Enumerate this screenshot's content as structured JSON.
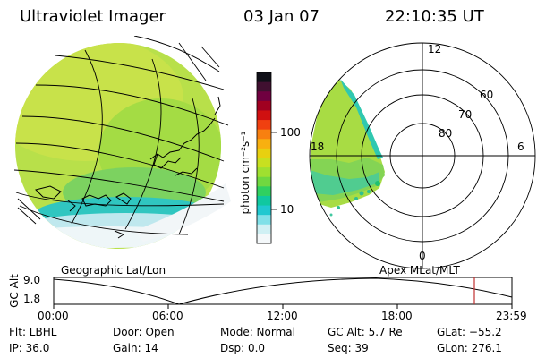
{
  "header": {
    "instrument": "Ultraviolet Imager",
    "date": "03 Jan 07",
    "time": "22:10:35 UT"
  },
  "colorbar": {
    "unit_label": "photon cm⁻²s⁻¹",
    "ticks": [
      "100",
      "10"
    ],
    "colors": [
      "#101018",
      "#401030",
      "#700040",
      "#a00020",
      "#d01010",
      "#f04010",
      "#f88010",
      "#f8b010",
      "#e8d010",
      "#c8e020",
      "#a0e030",
      "#70d840",
      "#30d060",
      "#10c8a0",
      "#20c8d0",
      "#80e0e8",
      "#d0f0f4",
      "#f4f8fa"
    ]
  },
  "polar": {
    "mlt_labels": {
      "top": "12",
      "left": "18",
      "right": "6",
      "bottom": "0"
    },
    "lat_labels": [
      "60",
      "70",
      "80"
    ]
  },
  "map_labels": {
    "left": "Geographic Lat/Lon",
    "right": "Apex MLat/MLT"
  },
  "timeline": {
    "ylabel": "GC Alt",
    "y_ticks": [
      "9.0",
      "1.8"
    ],
    "x_ticks": [
      "00:00",
      "06:00",
      "12:00",
      "18:00",
      "23:59"
    ],
    "cursor_time": "22:10:35",
    "cursor_color": "#c03030"
  },
  "status": {
    "flt": "Flt: LBHL",
    "ip": "IP: 36.0",
    "door": "Door: Open",
    "gain": "Gain: 14",
    "mode": "Mode: Normal",
    "dsp": "Dsp:     0.0",
    "gc_alt": "GC Alt: 5.7 Re",
    "seq": "Seq: 39",
    "glat": "GLat: −55.2",
    "glon": "GLon: 276.1"
  }
}
